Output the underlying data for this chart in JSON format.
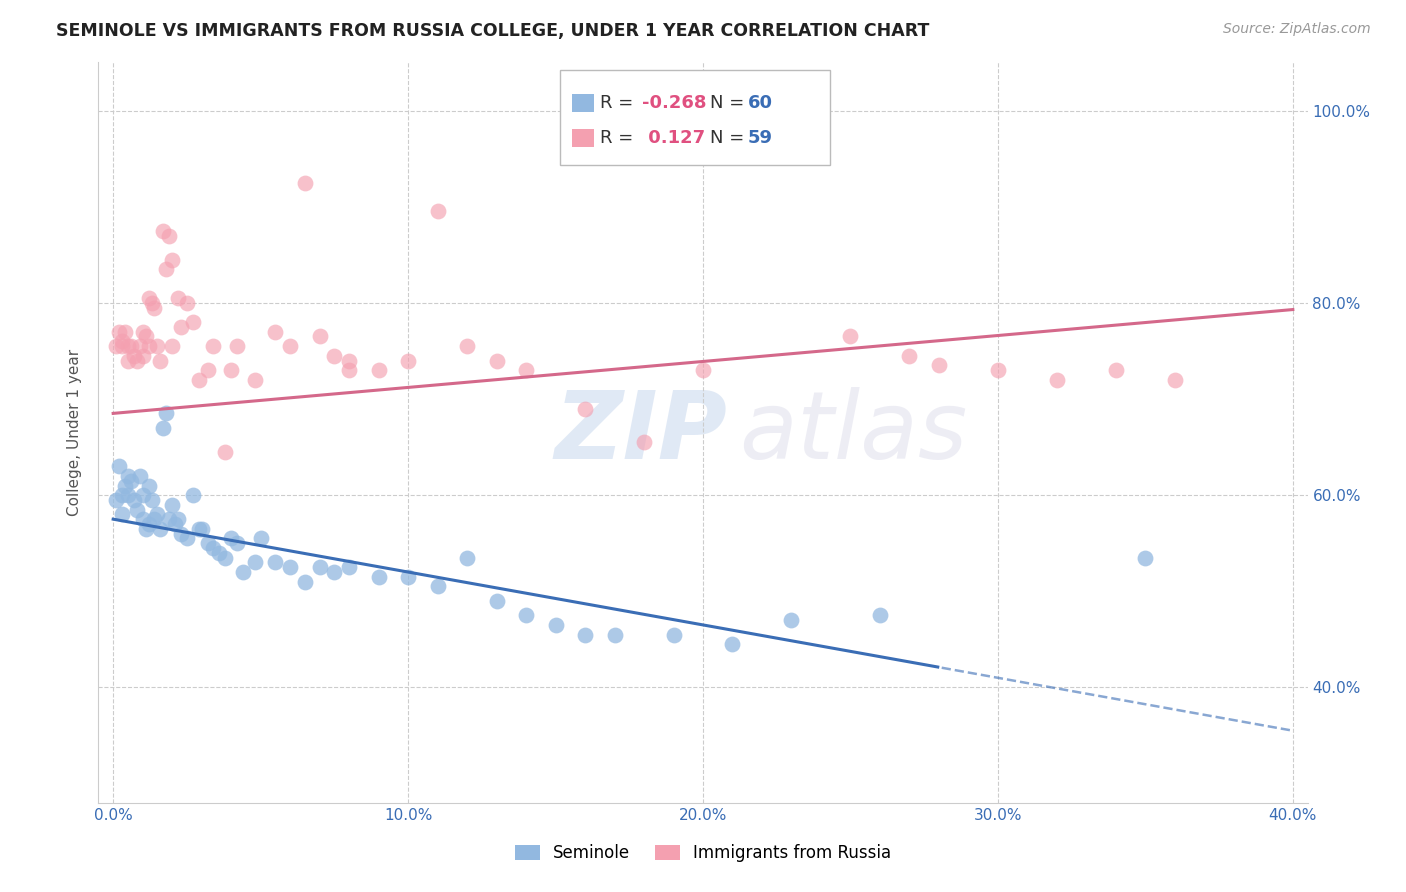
{
  "title": "SEMINOLE VS IMMIGRANTS FROM RUSSIA COLLEGE, UNDER 1 YEAR CORRELATION CHART",
  "source": "Source: ZipAtlas.com",
  "ylabel": "College, Under 1 year",
  "x_min": 0.0,
  "x_max": 0.4,
  "y_min": 0.28,
  "y_max": 1.05,
  "watermark_zip": "ZIP",
  "watermark_atlas": "atlas",
  "blue_color": "#92b8e0",
  "pink_color": "#f4a0b0",
  "blue_line_color": "#3a6db5",
  "pink_line_color": "#d4688a",
  "legend_r1": "-0.268",
  "legend_n1": "60",
  "legend_r2": "0.127",
  "legend_n2": "59",
  "legend_labels": [
    "Seminole",
    "Immigrants from Russia"
  ],
  "x_ticks": [
    0.0,
    0.1,
    0.2,
    0.3,
    0.4
  ],
  "y_ticks": [
    0.4,
    0.6,
    0.8,
    1.0
  ],
  "blue_r": -0.268,
  "pink_r": 0.127,
  "blue_intercept": 0.575,
  "blue_slope": -0.55,
  "pink_intercept": 0.685,
  "pink_slope": 0.27,
  "seminole_x": [
    0.001,
    0.002,
    0.003,
    0.003,
    0.004,
    0.005,
    0.005,
    0.006,
    0.007,
    0.008,
    0.009,
    0.01,
    0.01,
    0.011,
    0.012,
    0.012,
    0.013,
    0.014,
    0.015,
    0.016,
    0.017,
    0.018,
    0.019,
    0.02,
    0.021,
    0.022,
    0.023,
    0.025,
    0.027,
    0.029,
    0.03,
    0.032,
    0.034,
    0.036,
    0.038,
    0.04,
    0.042,
    0.044,
    0.048,
    0.05,
    0.055,
    0.06,
    0.065,
    0.07,
    0.075,
    0.08,
    0.09,
    0.1,
    0.11,
    0.12,
    0.13,
    0.14,
    0.15,
    0.16,
    0.17,
    0.19,
    0.21,
    0.23,
    0.26,
    0.35
  ],
  "seminole_y": [
    0.595,
    0.63,
    0.58,
    0.6,
    0.61,
    0.62,
    0.6,
    0.615,
    0.595,
    0.585,
    0.62,
    0.6,
    0.575,
    0.565,
    0.57,
    0.61,
    0.595,
    0.575,
    0.58,
    0.565,
    0.67,
    0.685,
    0.575,
    0.59,
    0.57,
    0.575,
    0.56,
    0.555,
    0.6,
    0.565,
    0.565,
    0.55,
    0.545,
    0.54,
    0.535,
    0.555,
    0.55,
    0.52,
    0.53,
    0.555,
    0.53,
    0.525,
    0.51,
    0.525,
    0.52,
    0.525,
    0.515,
    0.515,
    0.505,
    0.535,
    0.49,
    0.475,
    0.465,
    0.455,
    0.455,
    0.455,
    0.445,
    0.47,
    0.475,
    0.535
  ],
  "russia_x": [
    0.001,
    0.002,
    0.003,
    0.003,
    0.004,
    0.005,
    0.005,
    0.006,
    0.007,
    0.008,
    0.009,
    0.01,
    0.01,
    0.011,
    0.012,
    0.012,
    0.013,
    0.014,
    0.015,
    0.016,
    0.017,
    0.018,
    0.019,
    0.02,
    0.022,
    0.023,
    0.025,
    0.027,
    0.029,
    0.032,
    0.034,
    0.038,
    0.042,
    0.048,
    0.055,
    0.065,
    0.07,
    0.075,
    0.08,
    0.09,
    0.1,
    0.11,
    0.12,
    0.13,
    0.14,
    0.16,
    0.18,
    0.2,
    0.25,
    0.27,
    0.28,
    0.3,
    0.32,
    0.34,
    0.36,
    0.02,
    0.04,
    0.06,
    0.08
  ],
  "russia_y": [
    0.755,
    0.77,
    0.76,
    0.755,
    0.77,
    0.755,
    0.74,
    0.755,
    0.745,
    0.74,
    0.755,
    0.745,
    0.77,
    0.765,
    0.755,
    0.805,
    0.8,
    0.795,
    0.755,
    0.74,
    0.875,
    0.835,
    0.87,
    0.845,
    0.805,
    0.775,
    0.8,
    0.78,
    0.72,
    0.73,
    0.755,
    0.645,
    0.755,
    0.72,
    0.77,
    0.925,
    0.765,
    0.745,
    0.73,
    0.73,
    0.74,
    0.895,
    0.755,
    0.74,
    0.73,
    0.69,
    0.655,
    0.73,
    0.765,
    0.745,
    0.735,
    0.73,
    0.72,
    0.73,
    0.72,
    0.755,
    0.73,
    0.755,
    0.74
  ]
}
